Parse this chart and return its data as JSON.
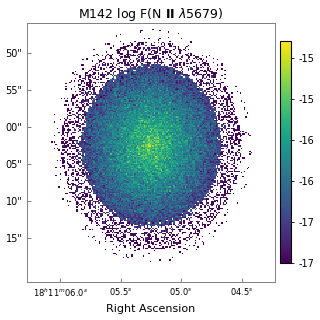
{
  "title": "M142 log F(N II λ5679)",
  "xlabel": "Right Ascension",
  "dec_labels": [
    "50\"",
    "55\"",
    "00\"",
    "05\"",
    "10\"",
    "15\""
  ],
  "ra_labels": [
    "$18^h11^m06.0^s$",
    "$05.5^s$",
    "$05.0^s$",
    "$04.5^s$"
  ],
  "cmap": "viridis",
  "vmin": -17.5,
  "vmax": -14.8,
  "colorbar_ticks": [
    -15.0,
    -15.5,
    -16.0,
    -16.5,
    -17.0,
    -17.5
  ],
  "colorbar_ticklabels": [
    "-15",
    "-15",
    "-16",
    "-16",
    "-17",
    "-17"
  ],
  "figsize": [
    3.2,
    3.2
  ],
  "dpi": 100
}
